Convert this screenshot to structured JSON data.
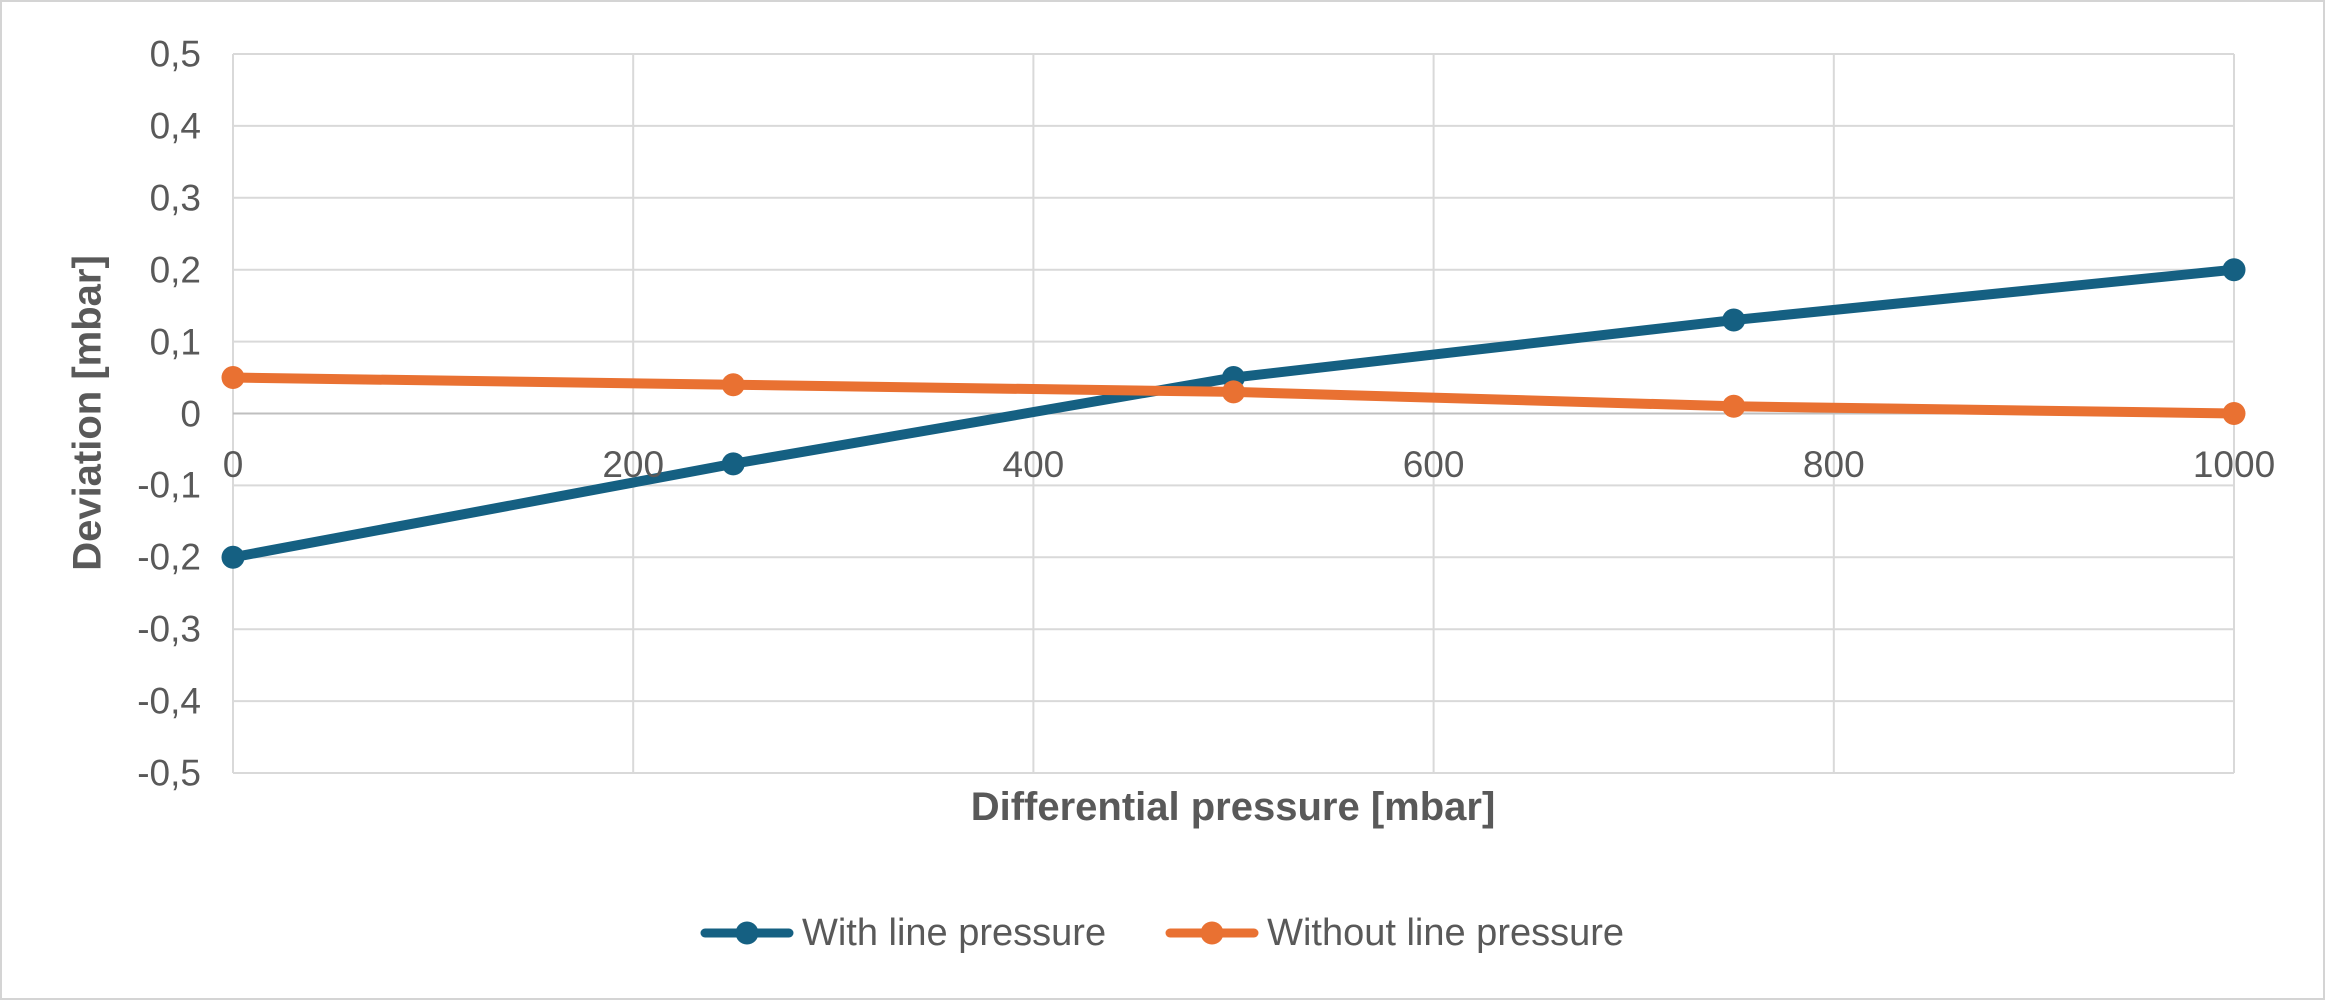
{
  "canvas": {
    "background": "#FFFFFF",
    "border_color": "#D4D4D4"
  },
  "colors": {
    "text": "#595959",
    "gridline": "#D9D9D9",
    "axis_line": "#BFBFBF"
  },
  "chart_data": {
    "type": "line",
    "xlabel": "Differential pressure [mbar]",
    "ylabel": "Deviation [mbar]",
    "x": [
      0,
      250,
      500,
      750,
      1000
    ],
    "series": [
      {
        "name": "With line pressure",
        "color": "#156082",
        "values": [
          -0.2,
          -0.07,
          0.05,
          0.13,
          0.2
        ]
      },
      {
        "name": "Without line pressure",
        "color": "#E97132",
        "values": [
          0.05,
          0.04,
          0.03,
          0.01,
          0
        ]
      }
    ],
    "xlim": [
      0,
      1000
    ],
    "ylim": [
      -0.5,
      0.5
    ],
    "x_ticks": [
      {
        "value": 0,
        "label": "0"
      },
      {
        "value": 200,
        "label": "200"
      },
      {
        "value": 400,
        "label": "400"
      },
      {
        "value": 600,
        "label": "600"
      },
      {
        "value": 800,
        "label": "800"
      },
      {
        "value": 1000,
        "label": "1000"
      }
    ],
    "y_ticks": [
      {
        "value": 0.5,
        "label": "0,5"
      },
      {
        "value": 0.4,
        "label": "0,4"
      },
      {
        "value": 0.3,
        "label": "0,3"
      },
      {
        "value": 0.2,
        "label": "0,2"
      },
      {
        "value": 0.1,
        "label": "0,1"
      },
      {
        "value": 0,
        "label": "0"
      },
      {
        "value": -0.1,
        "label": "-0,1"
      },
      {
        "value": -0.2,
        "label": "-0,2"
      },
      {
        "value": -0.3,
        "label": "-0,3"
      },
      {
        "value": -0.4,
        "label": "-0,4"
      },
      {
        "value": -0.5,
        "label": "-0,5"
      }
    ],
    "grid": true,
    "legend_position": "bottom",
    "marker": "circle",
    "line_width": 10,
    "marker_radius": 11.5
  }
}
